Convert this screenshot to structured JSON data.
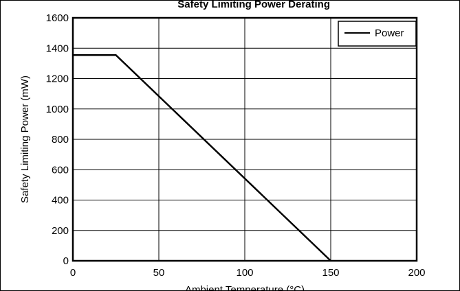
{
  "chart_data": {
    "type": "line",
    "title": "Safety Limiting Power Derating",
    "xlabel": "Ambient Temperature (°C)",
    "ylabel": "Safety Limiting Power (mW)",
    "xlim": [
      0,
      200
    ],
    "ylim": [
      0,
      1600
    ],
    "x_ticks": [
      0,
      50,
      100,
      150,
      200
    ],
    "y_ticks": [
      0,
      200,
      400,
      600,
      800,
      1000,
      1200,
      1400,
      1600
    ],
    "grid": true,
    "legend_position": "top-right",
    "series": [
      {
        "name": "Power",
        "color": "#000000",
        "x": [
          0,
          25,
          150
        ],
        "y": [
          1355,
          1355,
          0
        ]
      }
    ]
  }
}
